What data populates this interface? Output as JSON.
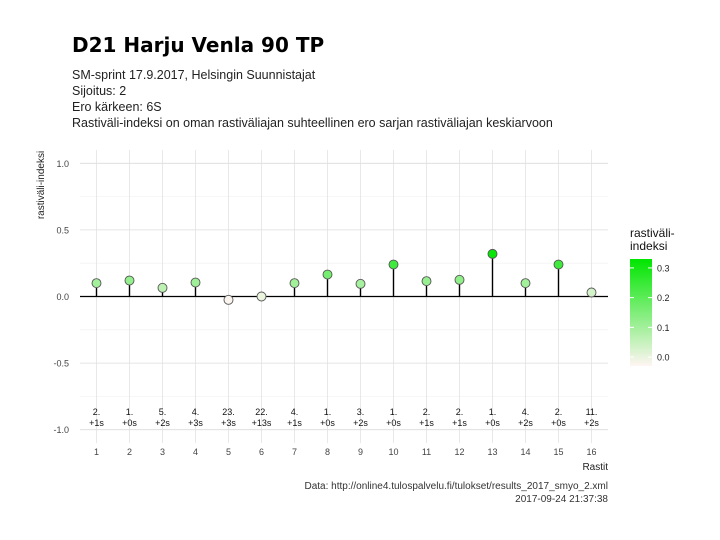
{
  "title": "D21 Harju Venla 90 TP",
  "subtitle_lines": [
    "SM-sprint 17.9.2017, Helsingin Suunnistajat",
    "Sijoitus: 2",
    "Ero kärkeen: 6S",
    "Rastiväli-indeksi on oman rastiväliajan suhteellinen ero sarjan rastiväliajan keskiarvoon"
  ],
  "caption": {
    "source": "Data: http://online4.tulospalvelu.fi/tulokset/results_2017_smyo_2.xml",
    "timestamp": "2017-09-24 21:37:38"
  },
  "chart_data": {
    "type": "lollipop",
    "title": "D21 Harju Venla 90 TP",
    "xlabel": "Rastit",
    "ylabel": "rastiväli-indeksi",
    "x": [
      1,
      2,
      3,
      4,
      5,
      6,
      7,
      8,
      9,
      10,
      11,
      12,
      13,
      14,
      15,
      16
    ],
    "y": [
      0.1,
      0.12,
      0.065,
      0.105,
      -0.025,
      0.0,
      0.1,
      0.165,
      0.095,
      0.24,
      0.115,
      0.125,
      0.32,
      0.1,
      0.24,
      0.03
    ],
    "leg_rank": [
      "2.",
      "1.",
      "5.",
      "4.",
      "23.",
      "22.",
      "4.",
      "1.",
      "3.",
      "1.",
      "2.",
      "2.",
      "1.",
      "4.",
      "2.",
      "11."
    ],
    "leg_diff": [
      "+1s",
      "+0s",
      "+2s",
      "+3s",
      "+3s",
      "+13s",
      "+1s",
      "+0s",
      "+2s",
      "+0s",
      "+1s",
      "+1s",
      "+0s",
      "+2s",
      "+0s",
      "+2s"
    ],
    "xlim": [
      0.5,
      16.5
    ],
    "ylim": [
      -1.0,
      1.0
    ],
    "yticks": [
      1.0,
      0.5,
      0.0,
      -0.5,
      -1.0
    ],
    "ytick_labels": [
      "1.0",
      "0.5",
      "0.0",
      "-0.5",
      "-1.0"
    ],
    "grid": true,
    "legend": {
      "title": "rastiväli-\nindeksi",
      "type": "colorbar",
      "ticks": [
        "0.3",
        "0.2",
        "0.1",
        "0.0"
      ],
      "tick_values": [
        0.3,
        0.2,
        0.1,
        0.0
      ],
      "low_color": "#fff5f3",
      "high_color": "#00e600",
      "range": [
        -0.03,
        0.33
      ],
      "placement": "right"
    }
  }
}
